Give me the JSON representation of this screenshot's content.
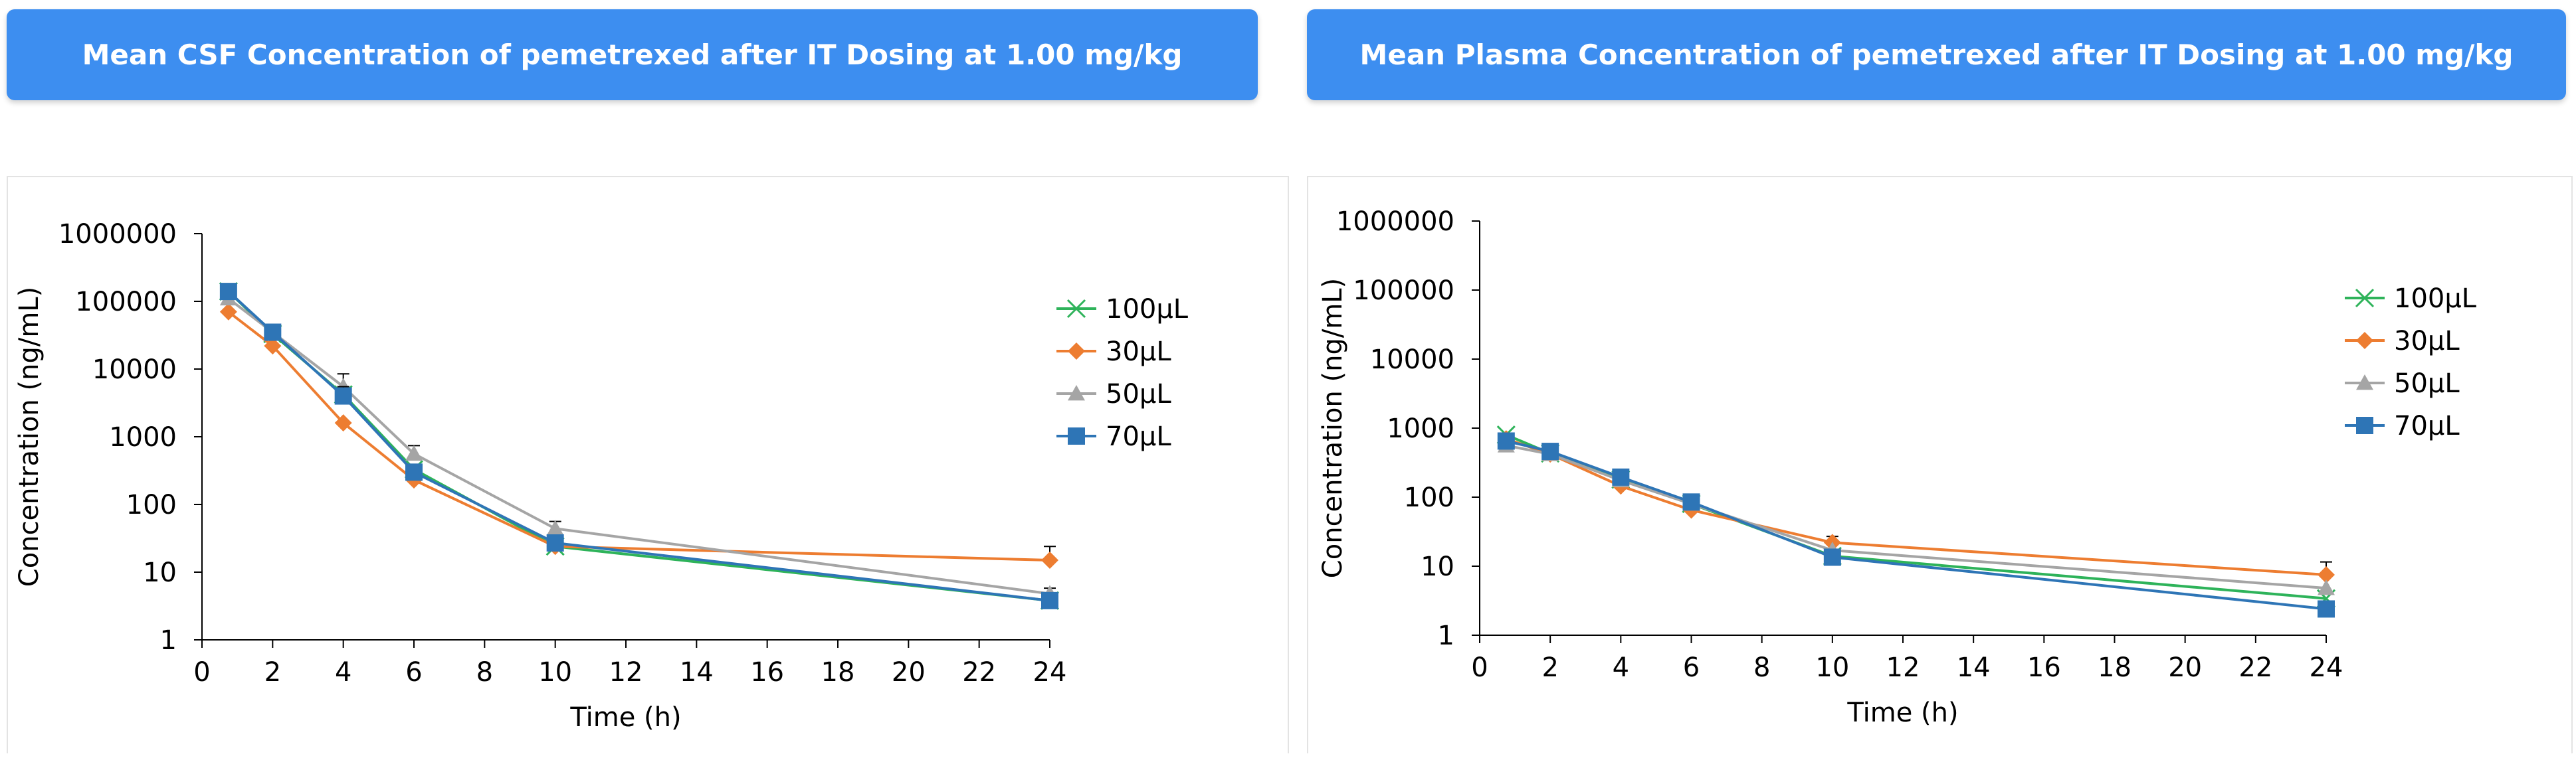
{
  "chart_data": [
    {
      "type": "line",
      "title": "Mean CSF Concentration of pemetrexed after IT Dosing at 1.00 mg/kg",
      "xlabel": "Time (h)",
      "ylabel": "Concentration (ng/mL)",
      "xlim": [
        0,
        24
      ],
      "ylim": [
        1,
        1000000
      ],
      "yscale": "log",
      "x_ticks": [
        "0",
        "2",
        "4",
        "6",
        "8",
        "10",
        "12",
        "14",
        "16",
        "18",
        "20",
        "22",
        "24"
      ],
      "y_ticks": [
        "1",
        "10",
        "100",
        "1000",
        "10000",
        "100000",
        "1000000"
      ],
      "legend_position": "right",
      "series": [
        {
          "name": "100μL",
          "color": "#2eb35a",
          "marker": "x",
          "x": [
            0.75,
            2,
            4,
            6,
            10,
            24
          ],
          "y": [
            140000,
            33000,
            4200,
            330,
            24,
            3.8
          ],
          "err": []
        },
        {
          "name": "30μL",
          "color": "#ed7d31",
          "marker": "diamond",
          "x": [
            0.75,
            2,
            4,
            6,
            10,
            24
          ],
          "y": [
            70000,
            22000,
            1600,
            230,
            24,
            15
          ],
          "err": [
            0,
            0,
            0,
            0,
            0,
            9
          ]
        },
        {
          "name": "50μL",
          "color": "#a5a5a5",
          "marker": "triangle",
          "x": [
            0.75,
            2,
            4,
            6,
            10,
            24
          ],
          "y": [
            110000,
            35000,
            5500,
            560,
            44,
            4.8
          ],
          "err": [
            0,
            0,
            3000,
            180,
            12,
            1
          ]
        },
        {
          "name": "70μL",
          "color": "#2e75b6",
          "marker": "square",
          "x": [
            0.75,
            2,
            4,
            6,
            10,
            24
          ],
          "y": [
            140000,
            35000,
            4000,
            300,
            27,
            3.8
          ],
          "err": [
            30000,
            10000,
            1500,
            0,
            0,
            0
          ]
        }
      ]
    },
    {
      "type": "line",
      "title": "Mean Plasma Concentration of pemetrexed after IT Dosing at 1.00 mg/kg",
      "xlabel": "Time (h)",
      "ylabel": "Concentration (ng/mL)",
      "xlim": [
        0,
        24
      ],
      "ylim": [
        1,
        1000000
      ],
      "yscale": "log",
      "x_ticks": [
        "0",
        "2",
        "4",
        "6",
        "8",
        "10",
        "12",
        "14",
        "16",
        "18",
        "20",
        "22",
        "24"
      ],
      "y_ticks": [
        "1",
        "10",
        "100",
        "1000",
        "10000",
        "100000",
        "1000000"
      ],
      "legend_position": "right",
      "series": [
        {
          "name": "100μL",
          "color": "#2eb35a",
          "marker": "x",
          "x": [
            0.75,
            2,
            4,
            6,
            10,
            24
          ],
          "y": [
            800,
            430,
            180,
            80,
            14,
            3.4
          ],
          "err": []
        },
        {
          "name": "30μL",
          "color": "#ed7d31",
          "marker": "diamond",
          "x": [
            0.75,
            2,
            4,
            6,
            10,
            24
          ],
          "y": [
            700,
            420,
            145,
            65,
            22,
            7.5
          ],
          "err": [
            0,
            0,
            0,
            0,
            5,
            4
          ]
        },
        {
          "name": "50μL",
          "color": "#a5a5a5",
          "marker": "triangle",
          "x": [
            0.75,
            2,
            4,
            6,
            10,
            24
          ],
          "y": [
            560,
            420,
            175,
            80,
            17,
            4.8
          ],
          "err": []
        },
        {
          "name": "70μL",
          "color": "#2e75b6",
          "marker": "square",
          "x": [
            0.75,
            2,
            4,
            6,
            10,
            24
          ],
          "y": [
            650,
            460,
            195,
            85,
            13.5,
            2.4
          ],
          "err": []
        }
      ]
    }
  ]
}
